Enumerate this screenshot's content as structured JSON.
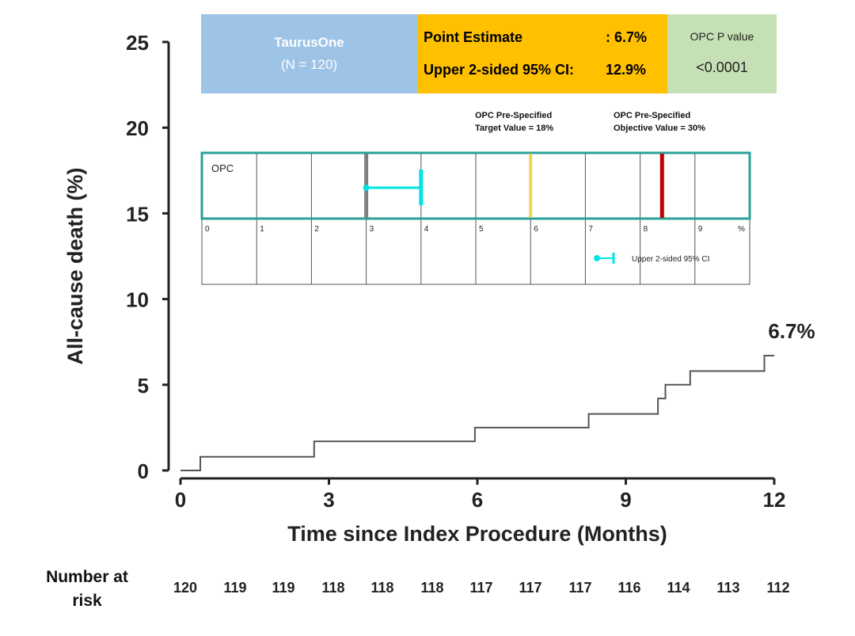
{
  "summary": {
    "study_name": "TaurusOne",
    "study_n": "(N = 120)",
    "point_estimate_label": "Point Estimate",
    "point_estimate_value": ": 6.7%",
    "ci_label": "Upper 2-sided 95% CI:",
    "ci_value": "12.9%",
    "p_label": "OPC P value",
    "p_value": "<0.0001"
  },
  "opc_labels": {
    "target_line1": "OPC Pre-Specified",
    "target_line2": "Target Value = 18%",
    "objective_line1": "OPC Pre-Specified",
    "objective_line2": "Objective Value = 30%"
  },
  "risk_table": {
    "title_line1": "Number at",
    "title_line2": "risk",
    "values": [
      "120",
      "119",
      "119",
      "118",
      "118",
      "118",
      "117",
      "117",
      "117",
      "116",
      "114",
      "113",
      "112"
    ]
  },
  "colors": {
    "study_box": "#9dc3e6",
    "estimate_box": "#ffc000",
    "pvalue_box": "#c5e0b4",
    "curve": "#555555",
    "opc_border": "#2aa198",
    "ci_marker": "#00e5e5",
    "estimate_line": "#7f7f7f",
    "target_line": "#f0d34f",
    "objective_line": "#c00000"
  },
  "chart_data": [
    {
      "type": "line",
      "subtype": "kaplan-meier-step",
      "title": "",
      "xlabel": "Time since Index Procedure (Months)",
      "ylabel": "All-cause death (%)",
      "xlim": [
        0,
        12
      ],
      "ylim": [
        0,
        25
      ],
      "xticks": [
        0,
        3,
        6,
        9,
        12
      ],
      "yticks": [
        0,
        5,
        10,
        15,
        20,
        25
      ],
      "grid": false,
      "series": [
        {
          "name": "TaurusOne",
          "x": [
            0,
            0.4,
            0.4,
            2.7,
            2.7,
            5.95,
            5.95,
            8.25,
            8.25,
            9.65,
            9.65,
            9.8,
            9.8,
            10.3,
            10.3,
            11.8,
            11.8,
            12
          ],
          "y": [
            0,
            0,
            0.8,
            0.8,
            1.7,
            1.7,
            2.5,
            2.5,
            3.3,
            3.3,
            4.2,
            4.2,
            5.0,
            5.0,
            5.8,
            5.8,
            6.7,
            6.7
          ]
        }
      ],
      "annotations": [
        {
          "x": 12,
          "y": 6.7,
          "text": "6.7%"
        }
      ]
    },
    {
      "type": "forest",
      "title": "OPC",
      "xlim": [
        0,
        10
      ],
      "ticks": [
        "0",
        "1",
        "2",
        "3",
        "4",
        "5",
        "6",
        "7",
        "8",
        "9",
        "%"
      ],
      "point_estimate": 3.0,
      "upper_ci": 4.0,
      "target_value_marker": 6.0,
      "objective_value_marker": 8.4,
      "legend": "Upper 2-sided 95% CI",
      "legend_position": "bottom-right"
    }
  ]
}
